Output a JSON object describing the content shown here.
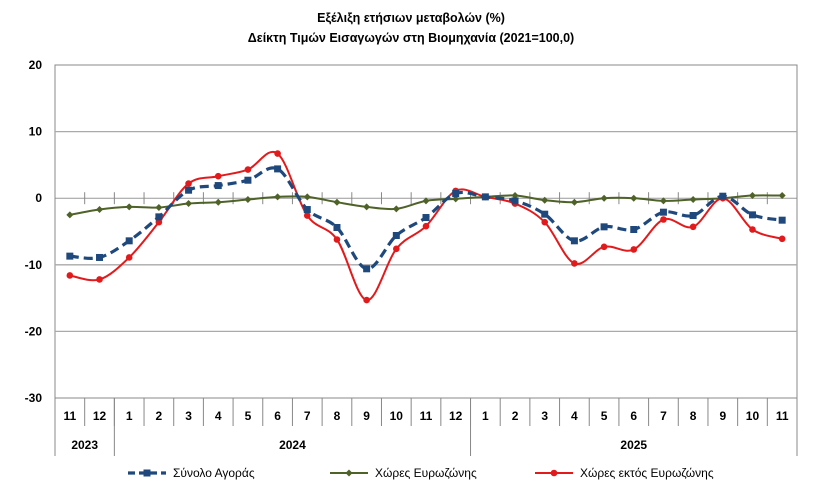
{
  "chart_data": {
    "type": "line",
    "title": "Εξέλιξη ετήσιων μεταβολών (%)",
    "subtitle": "Δείκτη Τιμών Εισαγωγών στη Βιομηχανία (2021=100,0)",
    "categories": [
      "11",
      "12",
      "1",
      "2",
      "3",
      "4",
      "5",
      "6",
      "7",
      "8",
      "9",
      "10",
      "11",
      "12",
      "1",
      "2",
      "3",
      "4",
      "5",
      "6",
      "7",
      "8",
      "9",
      "10",
      "11"
    ],
    "years": [
      {
        "label": "2023",
        "count": 2
      },
      {
        "label": "2024",
        "count": 12
      },
      {
        "label": "2025",
        "count": 11
      }
    ],
    "ylim": [
      -30,
      20
    ],
    "yticks": [
      20,
      10,
      0,
      -10,
      -20,
      -30
    ],
    "grid": true,
    "legend": "bottom",
    "series": [
      {
        "name": "Σύνολο Αγοράς",
        "color": "#1f497d",
        "style": "dashed",
        "marker": "square",
        "values": [
          -8.7,
          -8.9,
          -6.4,
          -2.8,
          1.2,
          1.9,
          2.7,
          4.4,
          -1.7,
          -4.4,
          -10.6,
          -5.6,
          -2.9,
          0.7,
          0.2,
          -0.4,
          -2.4,
          -6.4,
          -4.3,
          -4.7,
          -2.1,
          -2.6,
          0.3,
          -2.5,
          -3.3
        ]
      },
      {
        "name": "Χώρες Ευρωζώνης",
        "color": "#4f6228",
        "style": "solid",
        "marker": "diamond",
        "values": [
          -2.5,
          -1.7,
          -1.3,
          -1.4,
          -0.8,
          -0.6,
          -0.2,
          0.2,
          0.2,
          -0.6,
          -1.3,
          -1.6,
          -0.4,
          -0.1,
          0.2,
          0.4,
          -0.3,
          -0.6,
          0.0,
          0.0,
          -0.4,
          -0.2,
          0.0,
          0.4,
          0.4
        ]
      },
      {
        "name": "Χώρες εκτός Ευρωζώνης",
        "color": "#e31a1c",
        "style": "solid",
        "marker": "circle",
        "values": [
          -11.6,
          -12.2,
          -8.9,
          -3.6,
          2.2,
          3.3,
          4.3,
          6.7,
          -2.6,
          -6.2,
          -15.3,
          -7.6,
          -4.2,
          1.1,
          0.2,
          -0.8,
          -3.6,
          -9.8,
          -7.3,
          -7.7,
          -3.2,
          -4.3,
          0.0,
          -4.7,
          -6.1
        ]
      }
    ]
  }
}
